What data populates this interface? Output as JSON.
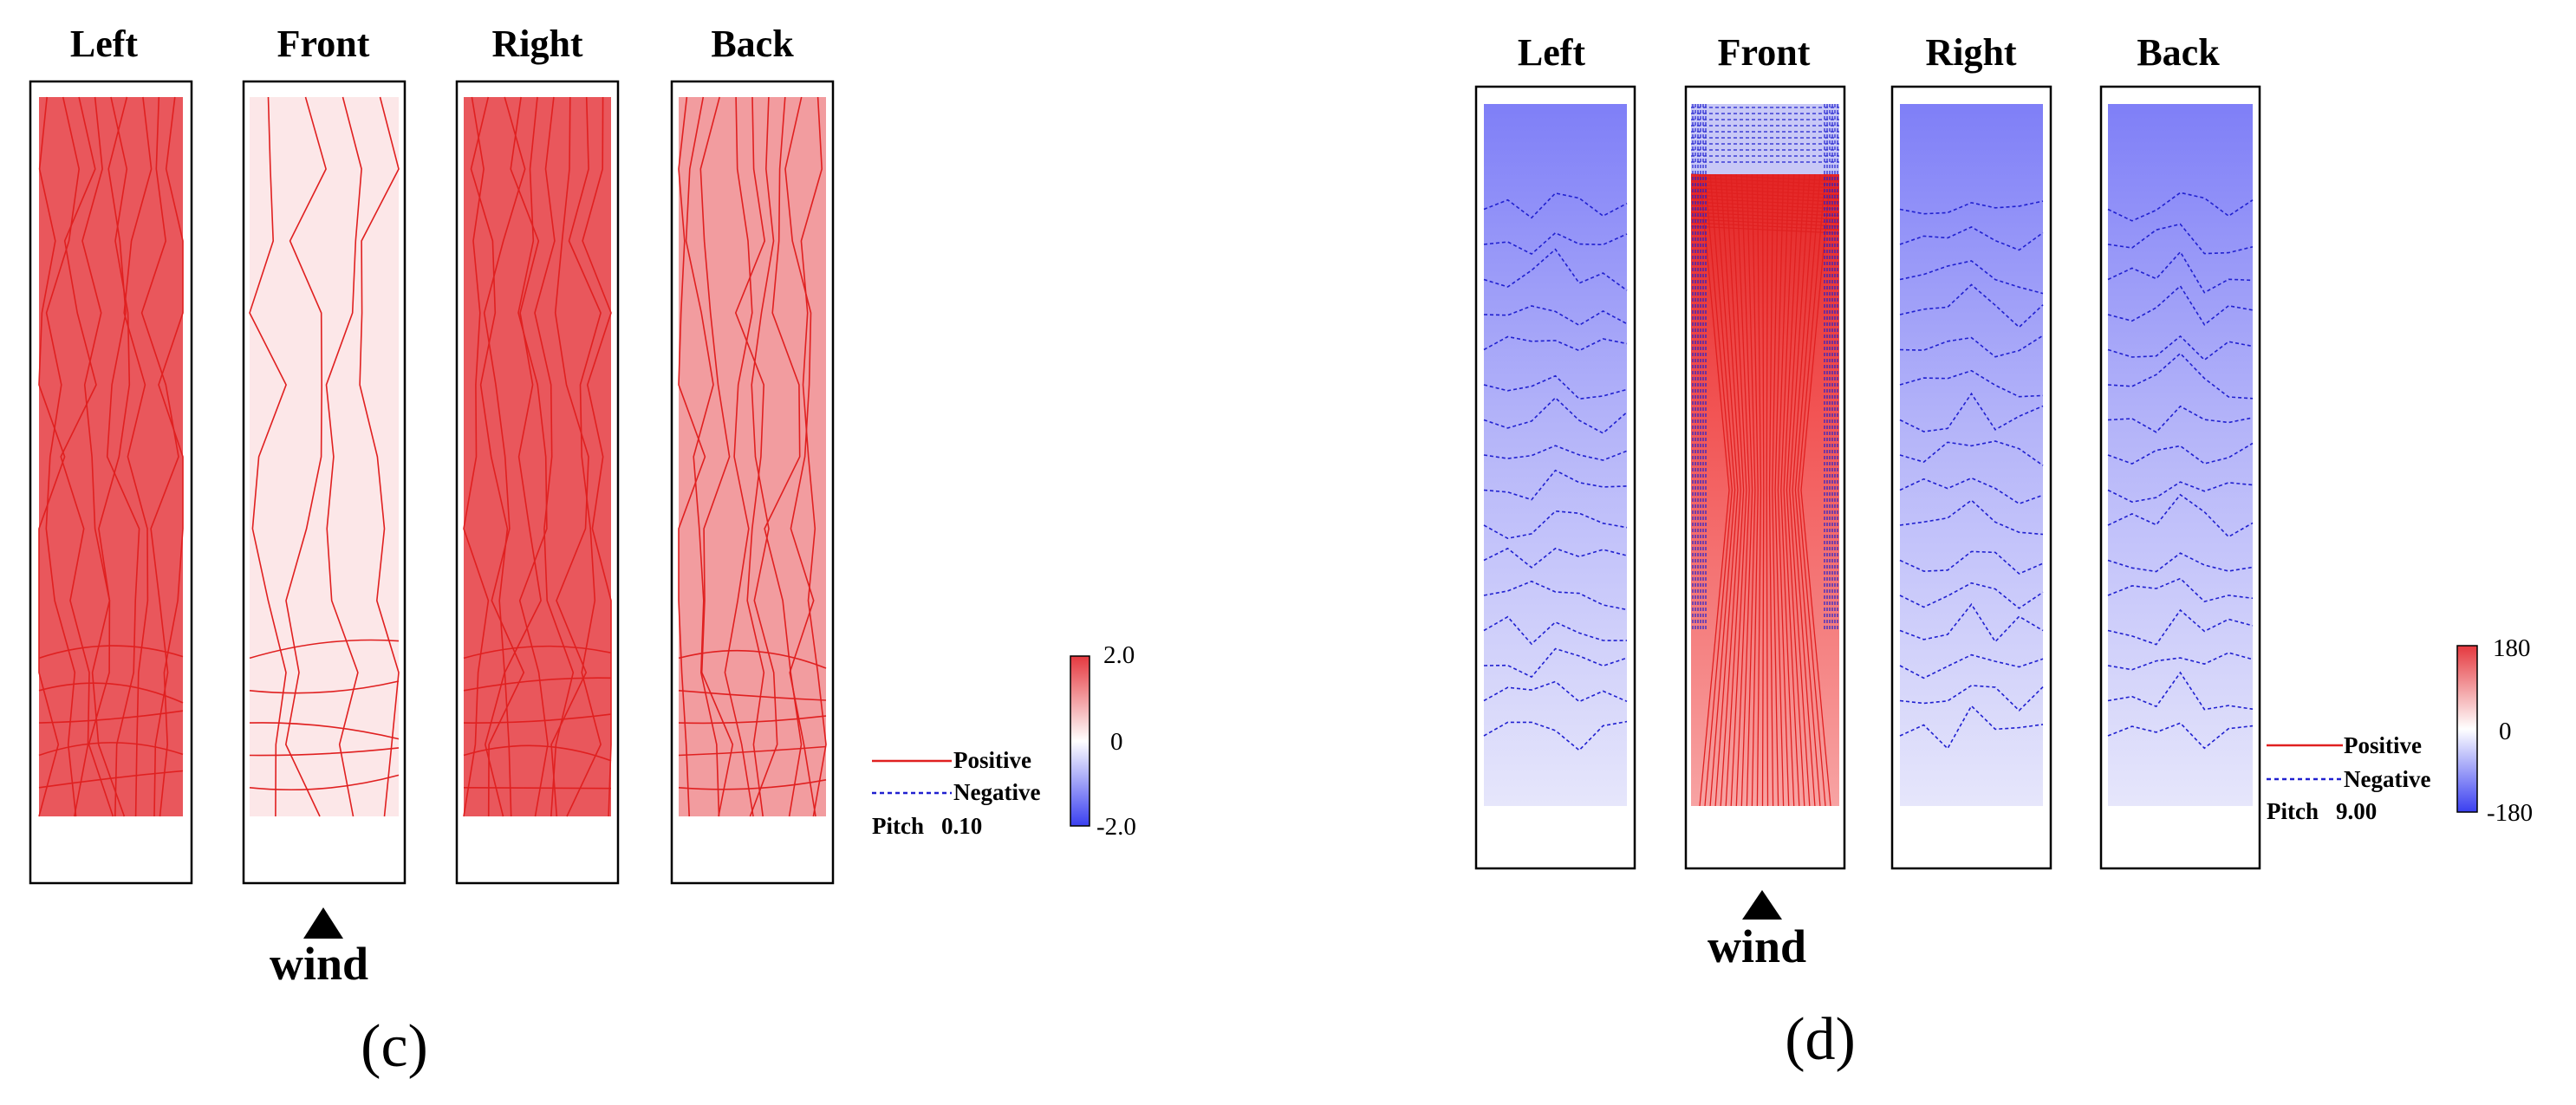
{
  "chart_data": [
    {
      "type": "heatmap",
      "subtitle": "(c)",
      "panels": [
        "Left",
        "Front",
        "Right",
        "Back"
      ],
      "colorbar": {
        "max_label": "2.0",
        "mid_label": "0",
        "min_label": "-2.0",
        "range": [
          -2.0,
          2.0
        ],
        "positive_color": "#e5393f",
        "negative_color": "#3a3ff0"
      },
      "legend": {
        "positive_label": "Positive",
        "negative_label": "Negative",
        "pitch_label": "Pitch",
        "pitch_value": "0.10",
        "position": "bottom-right"
      },
      "panel_levels": [
        0.85,
        0.12,
        0.85,
        0.5
      ],
      "wind_label": "wind",
      "wind_face": "Front"
    },
    {
      "type": "heatmap",
      "subtitle": "(d)",
      "panels": [
        "Left",
        "Front",
        "Right",
        "Back"
      ],
      "colorbar": {
        "max_label": "180",
        "mid_label": "0",
        "min_label": "-180",
        "range": [
          -180,
          180
        ],
        "positive_color": "#e5393f",
        "negative_color": "#3a3ff0"
      },
      "legend": {
        "positive_label": "Positive",
        "negative_label": "Negative",
        "pitch_label": "Pitch",
        "pitch_value": "9.00",
        "position": "bottom-right"
      },
      "panel_levels": [
        -0.55,
        0.6,
        -0.55,
        -0.6
      ],
      "wind_label": "wind",
      "wind_face": "Front"
    }
  ],
  "colors": {
    "positive_line": "#e02020",
    "negative_line": "#2020d0",
    "frame": "#000000"
  }
}
